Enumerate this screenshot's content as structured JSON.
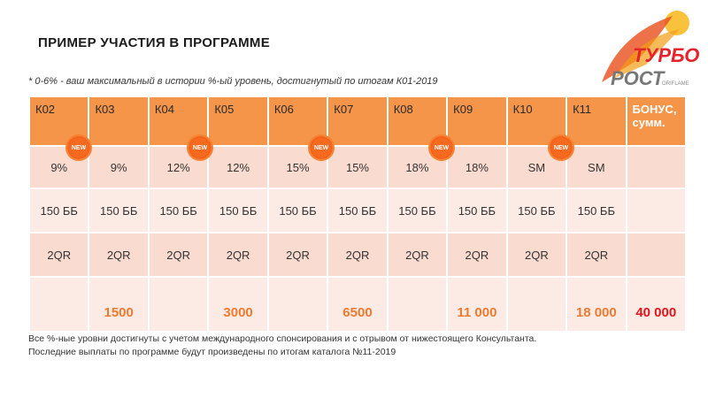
{
  "title": "ПРИМЕР УЧАСТИЯ В ПРОГРАММЕ",
  "note": "* 0-6% - ваш максимальный в истории %-ый уровень, достигнутый по итогам К01-2019",
  "logo": {
    "line1": "ТУРБО",
    "line2": "РОСТ",
    "brand": "ORIFLAME"
  },
  "badge": "NEW",
  "headers": [
    "К02",
    "К03",
    "К04",
    "К05",
    "К06",
    "К07",
    "К08",
    "К09",
    "К10",
    "К11",
    "БОНУС, сумм."
  ],
  "rows": {
    "percent": [
      "9%",
      "9%",
      "12%",
      "12%",
      "15%",
      "15%",
      "18%",
      "18%",
      "SM",
      "SM",
      ""
    ],
    "bb": [
      "150 ББ",
      "150 ББ",
      "150 ББ",
      "150 ББ",
      "150 ББ",
      "150 ББ",
      "150 ББ",
      "150 ББ",
      "150 ББ",
      "150 ББ",
      ""
    ],
    "qr": [
      "2QR",
      "2QR",
      "2QR",
      "2QR",
      "2QR",
      "2QR",
      "2QR",
      "2QR",
      "2QR",
      "2QR",
      ""
    ],
    "bonus": [
      "",
      "1500",
      "",
      "3000",
      "",
      "6500",
      "",
      "11 000",
      "",
      "18 000",
      "40 000"
    ]
  },
  "footer": [
    "Все %-ные уровни достигнуты с учетом международного спонсирования и с отрывом от нижестоящего Консультанта.",
    "Последние выплаты по программе будут произведены по итогам каталога №11-2019"
  ]
}
